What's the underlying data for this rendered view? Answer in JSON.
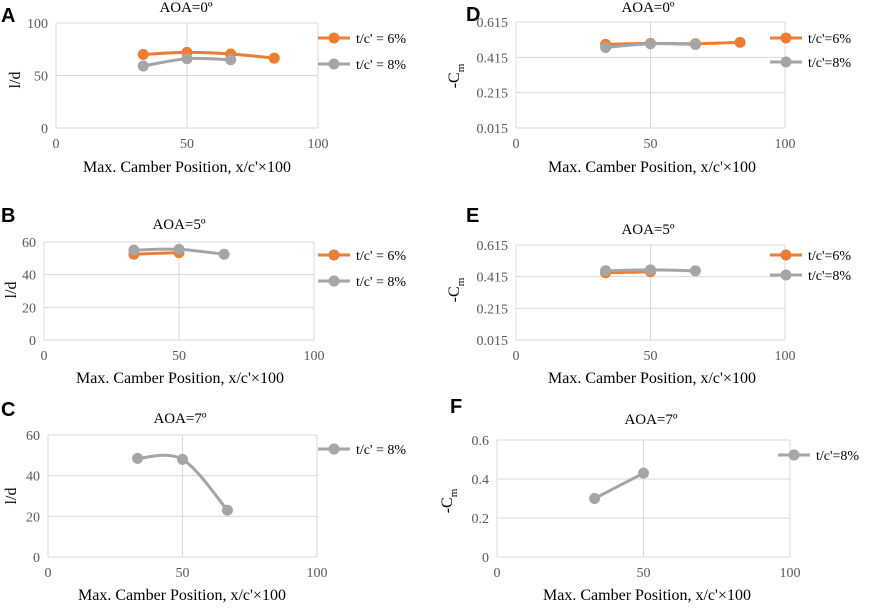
{
  "colors": {
    "orange": "#ED7D31",
    "gray": "#A5A5A5"
  },
  "chart_data": [
    {
      "id": "A",
      "panel_label": "A",
      "type": "line",
      "title": "AOA=0º",
      "xlabel": "Max. Camber Position, x/c'×100",
      "ylabel": "l/d",
      "xlim": [
        0,
        100
      ],
      "xticks": [
        0,
        50,
        100
      ],
      "xtick_labels": [
        "0",
        "50",
        "100"
      ],
      "ylim": [
        0,
        100
      ],
      "yticks": [
        0,
        50,
        100
      ],
      "ytick_labels": [
        "0",
        "50",
        "100"
      ],
      "series": [
        {
          "name": "t/c' = 6%",
          "color": "orange",
          "x": [
            33.3,
            50,
            66.7,
            83.3
          ],
          "y": [
            70,
            72,
            70.5,
            66.5
          ]
        },
        {
          "name": "t/c' = 8%",
          "color": "gray",
          "x": [
            33.3,
            50,
            66.7
          ],
          "y": [
            59,
            66,
            65
          ]
        }
      ]
    },
    {
      "id": "B",
      "panel_label": "B",
      "type": "line",
      "title": "AOA=5º",
      "xlabel": "Max. Camber Position, x/c'×100",
      "ylabel": "l/d",
      "xlim": [
        0,
        100
      ],
      "xticks": [
        0,
        50,
        100
      ],
      "xtick_labels": [
        "0",
        "50",
        "100"
      ],
      "ylim": [
        0,
        60
      ],
      "yticks": [
        0,
        20,
        40,
        60
      ],
      "ytick_labels": [
        "0",
        "20",
        "40",
        "60"
      ],
      "series": [
        {
          "name": "t/c' = 6%",
          "color": "orange",
          "x": [
            33.3,
            50
          ],
          "y": [
            52.5,
            53.5
          ]
        },
        {
          "name": "t/c' = 8%",
          "color": "gray",
          "x": [
            33.3,
            50,
            66.7
          ],
          "y": [
            55,
            55.5,
            52.5
          ]
        }
      ]
    },
    {
      "id": "C",
      "panel_label": "C",
      "type": "line",
      "title": "AOA=7º",
      "xlabel": "Max. Camber Position, x/c'×100",
      "ylabel": "l/d",
      "xlim": [
        0,
        100
      ],
      "xticks": [
        0,
        50,
        100
      ],
      "xtick_labels": [
        "0",
        "50",
        "100"
      ],
      "ylim": [
        0,
        60
      ],
      "yticks": [
        0,
        20,
        40,
        60
      ],
      "ytick_labels": [
        "0",
        "20",
        "40",
        "60"
      ],
      "series": [
        {
          "name": "t/c' = 8%",
          "color": "gray",
          "x": [
            33.3,
            50,
            66.7
          ],
          "y": [
            48.5,
            48,
            23
          ]
        }
      ]
    },
    {
      "id": "D",
      "panel_label": "D",
      "type": "line",
      "title": "AOA=0º",
      "xlabel": "Max. Camber Position, x/c'×100",
      "ylabel": "-C",
      "ylabel_sub": "m",
      "xlim": [
        0,
        100
      ],
      "xticks": [
        0,
        50,
        100
      ],
      "xtick_labels": [
        "0",
        "50",
        "100"
      ],
      "ylim": [
        0.015,
        0.615
      ],
      "yticks": [
        0.015,
        0.215,
        0.415,
        0.615
      ],
      "ytick_labels": [
        "0.015",
        "0.215",
        "0.415",
        "0.615"
      ],
      "series": [
        {
          "name": "t/c'=6%",
          "color": "orange",
          "x": [
            33.3,
            50,
            66.7,
            83.3
          ],
          "y": [
            0.488,
            0.494,
            0.492,
            0.5
          ]
        },
        {
          "name": "t/c'=8%",
          "color": "gray",
          "x": [
            33.3,
            50,
            66.7
          ],
          "y": [
            0.471,
            0.492,
            0.488
          ]
        }
      ]
    },
    {
      "id": "E",
      "panel_label": "E",
      "type": "line",
      "title": "AOA=5º",
      "xlabel": "Max. Camber Position, x/c'×100",
      "ylabel": "-C",
      "ylabel_sub": "m",
      "xlim": [
        0,
        100
      ],
      "xticks": [
        0,
        50,
        100
      ],
      "xtick_labels": [
        "0",
        "50",
        "100"
      ],
      "ylim": [
        0.015,
        0.615
      ],
      "yticks": [
        0.015,
        0.215,
        0.415,
        0.615
      ],
      "ytick_labels": [
        "0.015",
        "0.215",
        "0.415",
        "0.615"
      ],
      "series": [
        {
          "name": "t/c'=6%",
          "color": "orange",
          "x": [
            33.3,
            50
          ],
          "y": [
            0.44,
            0.446
          ]
        },
        {
          "name": "t/c'=8%",
          "color": "gray",
          "x": [
            33.3,
            50,
            66.7
          ],
          "y": [
            0.452,
            0.458,
            0.452
          ]
        }
      ]
    },
    {
      "id": "F",
      "panel_label": "F",
      "type": "line",
      "title": "AOA=7º",
      "xlabel": "Max. Camber Position, x/c'×100",
      "ylabel": "-C",
      "ylabel_sub": "m",
      "xlim": [
        0,
        100
      ],
      "xticks": [
        0,
        50,
        100
      ],
      "xtick_labels": [
        "0",
        "50",
        "100"
      ],
      "ylim": [
        0,
        0.6
      ],
      "yticks": [
        0,
        0.2,
        0.4,
        0.6
      ],
      "ytick_labels": [
        "0",
        "0.2",
        "0.4",
        "0.6"
      ],
      "series": [
        {
          "name": "t/c'=8%",
          "color": "gray",
          "x": [
            33.3,
            50
          ],
          "y": [
            0.3,
            0.43
          ]
        }
      ]
    }
  ]
}
